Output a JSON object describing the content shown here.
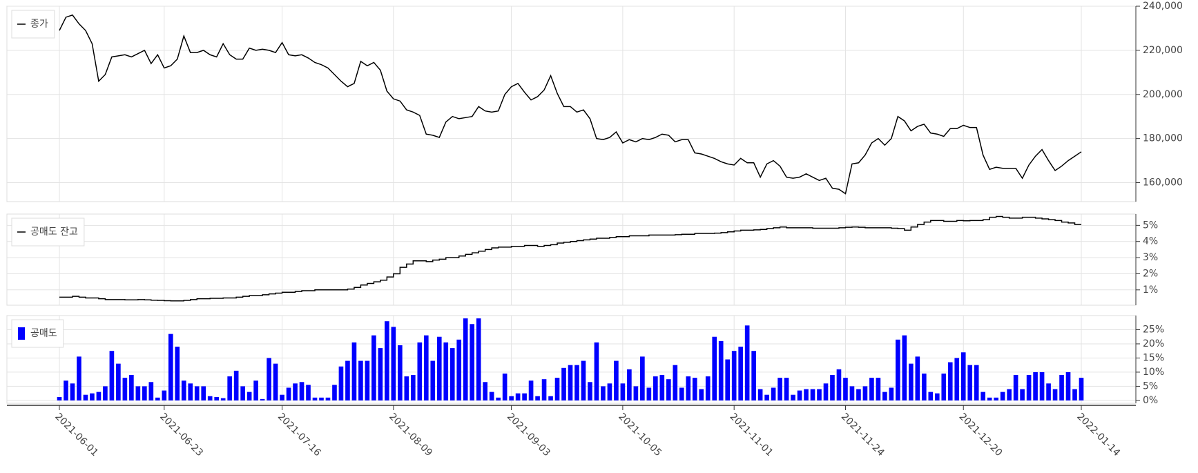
{
  "chart_data": [
    {
      "type": "line",
      "series": [
        {
          "name": "종가",
          "color": "#000000",
          "values": [
            229000,
            235000,
            236000,
            232000,
            229000,
            223000,
            206000,
            209000,
            217000,
            217500,
            218000,
            217000,
            218500,
            220000,
            214000,
            218000,
            212000,
            213000,
            216000,
            226500,
            219000,
            219000,
            220000,
            218000,
            217000,
            223000,
            218000,
            216000,
            216000,
            221000,
            220000,
            220500,
            220000,
            219000,
            223500,
            218000,
            217500,
            218000,
            216500,
            214500,
            213500,
            212000,
            209000,
            206000,
            203500,
            205000,
            215000,
            213000,
            214500,
            211000,
            201500,
            198000,
            197000,
            193000,
            192000,
            190500,
            182000,
            181500,
            180500,
            187500,
            190000,
            189000,
            189500,
            190000,
            194500,
            192500,
            192000,
            192500,
            200000,
            203500,
            205000,
            201000,
            197500,
            199000,
            202000,
            208500,
            200500,
            194500,
            194500,
            192000,
            193000,
            189000,
            180000,
            179500,
            180500,
            183000,
            178000,
            179500,
            178500,
            180000,
            179500,
            180500,
            182000,
            181500,
            178500,
            179500,
            179500,
            173500,
            173000,
            172000,
            171000,
            169500,
            168500,
            168000,
            171000,
            169000,
            169000,
            162500,
            168500,
            170000,
            167500,
            162500,
            162000,
            162500,
            164000,
            162500,
            161000,
            162000,
            157500,
            157000,
            155000,
            168500,
            169000,
            172500,
            178000,
            180000,
            177000,
            180000,
            190000,
            188000,
            183500,
            185500,
            186500,
            182500,
            182000,
            181000,
            184500,
            184500,
            186000,
            185000,
            185000,
            172500,
            166000,
            167000,
            166500,
            166500,
            166500,
            162000,
            168000,
            172000,
            175000,
            170000,
            165500,
            167500,
            170000,
            172000,
            174000
          ]
        }
      ],
      "ylim": [
        151400,
        240000
      ],
      "yticks": [
        {
          "value": 160000,
          "label": "160,000"
        },
        {
          "value": 180000,
          "label": "180,000"
        },
        {
          "value": 200000,
          "label": "200,000"
        },
        {
          "value": 220000,
          "label": "220,000"
        },
        {
          "value": 240000,
          "label": "240,000"
        }
      ],
      "grid": true,
      "legend": "upper-left"
    },
    {
      "type": "step",
      "series": [
        {
          "name": "공매도 잔고",
          "color": "#000000",
          "values": [
            0.55,
            0.55,
            0.6,
            0.55,
            0.5,
            0.5,
            0.45,
            0.4,
            0.4,
            0.4,
            0.38,
            0.38,
            0.4,
            0.38,
            0.36,
            0.35,
            0.33,
            0.32,
            0.32,
            0.35,
            0.4,
            0.45,
            0.45,
            0.48,
            0.48,
            0.5,
            0.5,
            0.55,
            0.6,
            0.65,
            0.65,
            0.7,
            0.75,
            0.8,
            0.85,
            0.85,
            0.9,
            0.95,
            0.95,
            1.0,
            1.0,
            1.0,
            1.0,
            1.0,
            1.05,
            1.15,
            1.3,
            1.4,
            1.5,
            1.6,
            1.8,
            2.0,
            2.4,
            2.6,
            2.8,
            2.8,
            2.75,
            2.85,
            2.9,
            3.0,
            3.0,
            3.1,
            3.2,
            3.3,
            3.4,
            3.5,
            3.6,
            3.65,
            3.65,
            3.7,
            3.7,
            3.75,
            3.75,
            3.7,
            3.75,
            3.8,
            3.9,
            3.95,
            4.0,
            4.05,
            4.1,
            4.15,
            4.2,
            4.2,
            4.25,
            4.3,
            4.3,
            4.35,
            4.35,
            4.35,
            4.4,
            4.4,
            4.4,
            4.4,
            4.42,
            4.45,
            4.45,
            4.5,
            4.5,
            4.5,
            4.52,
            4.55,
            4.6,
            4.65,
            4.7,
            4.7,
            4.72,
            4.75,
            4.8,
            4.85,
            4.9,
            4.85,
            4.85,
            4.85,
            4.85,
            4.82,
            4.82,
            4.82,
            4.82,
            4.85,
            4.88,
            4.9,
            4.88,
            4.85,
            4.85,
            4.85,
            4.85,
            4.82,
            4.8,
            4.7,
            4.9,
            5.05,
            5.2,
            5.3,
            5.3,
            5.25,
            5.25,
            5.3,
            5.28,
            5.3,
            5.3,
            5.35,
            5.5,
            5.55,
            5.5,
            5.45,
            5.45,
            5.5,
            5.5,
            5.45,
            5.4,
            5.35,
            5.3,
            5.2,
            5.15,
            5.05,
            5.05
          ]
        }
      ],
      "ylim": [
        0.05,
        5.7
      ],
      "yticks": [
        {
          "value": 1,
          "label": "1%"
        },
        {
          "value": 2,
          "label": "2%"
        },
        {
          "value": 3,
          "label": "3%"
        },
        {
          "value": 4,
          "label": "4%"
        },
        {
          "value": 5,
          "label": "5%"
        }
      ],
      "grid": true,
      "legend": "upper-left"
    },
    {
      "type": "bar",
      "categories": [
        "2021-06-01",
        null,
        null,
        null,
        null,
        null,
        null,
        null,
        null,
        null,
        null,
        null,
        null,
        null,
        null,
        null,
        "2021-06-23",
        null,
        null,
        null,
        null,
        null,
        null,
        null,
        null,
        null,
        null,
        null,
        null,
        null,
        null,
        null,
        null,
        null,
        "2021-07-16",
        null,
        null,
        null,
        null,
        null,
        null,
        null,
        null,
        null,
        null,
        null,
        null,
        null,
        null,
        null,
        null,
        "2021-08-09",
        null,
        null,
        null,
        null,
        null,
        null,
        null,
        null,
        null,
        null,
        null,
        null,
        null,
        null,
        null,
        null,
        null,
        "2021-09-03",
        null,
        null,
        null,
        null,
        null,
        null,
        null,
        null,
        null,
        null,
        null,
        null,
        null,
        null,
        null,
        null,
        "2021-10-05",
        null,
        null,
        null,
        null,
        null,
        null,
        null,
        null,
        null,
        null,
        null,
        null,
        null,
        null,
        null,
        null,
        "2021-11-01",
        null,
        null,
        null,
        null,
        null,
        null,
        null,
        null,
        null,
        null,
        null,
        null,
        null,
        null,
        null,
        null,
        "2021-11-24",
        null,
        null,
        null,
        null,
        null,
        null,
        null,
        null,
        null,
        null,
        null,
        null,
        null,
        null,
        null,
        null,
        null,
        "2021-12-20",
        null,
        null,
        null,
        null,
        null,
        null,
        null,
        null,
        null,
        null,
        null,
        null,
        null,
        null,
        null,
        null,
        null,
        "2022-01-14"
      ],
      "series": [
        {
          "name": "공매도",
          "color": "#0000ff",
          "values": [
            1.2,
            7,
            6,
            15.5,
            2,
            2.5,
            3,
            5,
            17.5,
            13,
            8,
            9,
            5,
            5,
            6.5,
            1,
            3.5,
            23.5,
            19,
            7,
            6,
            5,
            5,
            1.5,
            1.2,
            0.8,
            8.5,
            10.5,
            5,
            3,
            7,
            0.5,
            15,
            13,
            2,
            4.5,
            6,
            6.5,
            5.5,
            1,
            1,
            1,
            5.5,
            12,
            14,
            20.5,
            14,
            14,
            23,
            18.5,
            28,
            26,
            19.5,
            8.5,
            9,
            20.5,
            23,
            14,
            22.5,
            20.5,
            18.5,
            21.5,
            29,
            27,
            29,
            6.5,
            3,
            1,
            9.5,
            1.5,
            2.5,
            2.5,
            7,
            1.5,
            7.5,
            1.5,
            8,
            11.5,
            12.5,
            12.5,
            14,
            6.5,
            20.5,
            5,
            6,
            14,
            6,
            11,
            5,
            15.5,
            4.5,
            8.5,
            9,
            7.5,
            12.5,
            4.5,
            8.5,
            8,
            4,
            8.5,
            22.5,
            21,
            14.5,
            17.5,
            19,
            26.5,
            17.5,
            4,
            2,
            4.5,
            8,
            8,
            2,
            3.5,
            4,
            4,
            4,
            6,
            9,
            11,
            8,
            5,
            4,
            5,
            8,
            8,
            3,
            4.5,
            21.5,
            23,
            13,
            15.5,
            9.5,
            3,
            2.5,
            9.5,
            13.5,
            15,
            17,
            12.5,
            12.5,
            3,
            1,
            1,
            3,
            4,
            9,
            4,
            9,
            10,
            10,
            6,
            4,
            9,
            10,
            4,
            8
          ]
        }
      ],
      "ylim": [
        -1,
        30
      ],
      "yticks": [
        {
          "value": 0,
          "label": "0%"
        },
        {
          "value": 5,
          "label": "5%"
        },
        {
          "value": 10,
          "label": "10%"
        },
        {
          "value": 15,
          "label": "15%"
        },
        {
          "value": 20,
          "label": "20%"
        },
        {
          "value": 25,
          "label": "25%"
        }
      ],
      "grid": true,
      "legend": "upper-left"
    }
  ]
}
